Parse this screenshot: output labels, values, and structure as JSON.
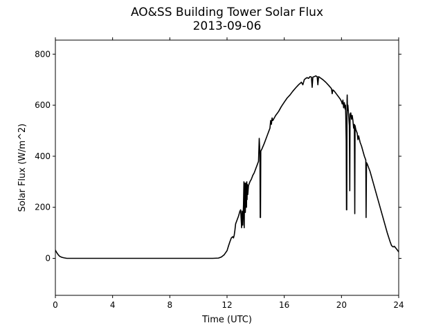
{
  "chart_data": {
    "type": "line",
    "title": "AO&SS Building Tower Solar Flux",
    "subtitle": "2013-09-06",
    "xlabel": "Time (UTC)",
    "ylabel": "Solar Flux (W/m^2)",
    "xlim": [
      0,
      24
    ],
    "ylim": [
      -145,
      855
    ],
    "xticks": [
      0,
      4,
      8,
      12,
      16,
      20,
      24
    ],
    "yticks": [
      0,
      200,
      400,
      600,
      800
    ],
    "grid": false,
    "series": [
      {
        "color": "#000000",
        "points": [
          [
            0,
            32
          ],
          [
            0.1,
            22
          ],
          [
            0.2,
            14
          ],
          [
            0.3,
            8
          ],
          [
            0.45,
            4
          ],
          [
            0.6,
            2
          ],
          [
            0.8,
            0
          ],
          [
            1.0,
            0
          ],
          [
            4,
            0
          ],
          [
            8,
            0
          ],
          [
            11,
            0
          ],
          [
            11.4,
            1
          ],
          [
            11.6,
            5
          ],
          [
            11.8,
            14
          ],
          [
            12.0,
            30
          ],
          [
            12.1,
            48
          ],
          [
            12.2,
            65
          ],
          [
            12.3,
            80
          ],
          [
            12.4,
            85
          ],
          [
            12.45,
            80
          ],
          [
            12.5,
            90
          ],
          [
            12.55,
            110
          ],
          [
            12.6,
            135
          ],
          [
            12.7,
            150
          ],
          [
            12.8,
            165
          ],
          [
            12.85,
            175
          ],
          [
            12.9,
            185
          ],
          [
            12.95,
            190
          ],
          [
            13.0,
            140
          ],
          [
            13.02,
            120
          ],
          [
            13.05,
            185
          ],
          [
            13.08,
            160
          ],
          [
            13.1,
            130
          ],
          [
            13.13,
            175
          ],
          [
            13.15,
            210
          ],
          [
            13.18,
            300
          ],
          [
            13.2,
            120
          ],
          [
            13.22,
            230
          ],
          [
            13.25,
            295
          ],
          [
            13.28,
            180
          ],
          [
            13.3,
            240
          ],
          [
            13.33,
            295
          ],
          [
            13.36,
            200
          ],
          [
            13.38,
            300
          ],
          [
            13.4,
            230
          ],
          [
            13.42,
            290
          ],
          [
            13.45,
            250
          ],
          [
            13.5,
            285
          ],
          [
            13.6,
            300
          ],
          [
            13.7,
            310
          ],
          [
            13.8,
            325
          ],
          [
            13.9,
            335
          ],
          [
            14.0,
            350
          ],
          [
            14.1,
            365
          ],
          [
            14.2,
            380
          ],
          [
            14.25,
            470
          ],
          [
            14.3,
            410
          ],
          [
            14.32,
            160
          ],
          [
            14.34,
            160
          ],
          [
            14.36,
            420
          ],
          [
            14.45,
            430
          ],
          [
            14.6,
            450
          ],
          [
            14.8,
            480
          ],
          [
            15.0,
            510
          ],
          [
            15.05,
            540
          ],
          [
            15.1,
            525
          ],
          [
            15.15,
            550
          ],
          [
            15.2,
            540
          ],
          [
            15.4,
            560
          ],
          [
            15.6,
            575
          ],
          [
            15.8,
            595
          ],
          [
            16.0,
            612
          ],
          [
            16.2,
            628
          ],
          [
            16.4,
            640
          ],
          [
            16.6,
            655
          ],
          [
            16.8,
            668
          ],
          [
            17.0,
            680
          ],
          [
            17.2,
            690
          ],
          [
            17.3,
            680
          ],
          [
            17.4,
            700
          ],
          [
            17.5,
            705
          ],
          [
            17.6,
            708
          ],
          [
            17.7,
            705
          ],
          [
            17.8,
            712
          ],
          [
            17.9,
            710
          ],
          [
            17.95,
            670
          ],
          [
            18.0,
            710
          ],
          [
            18.1,
            712
          ],
          [
            18.2,
            715
          ],
          [
            18.3,
            712
          ],
          [
            18.35,
            680
          ],
          [
            18.4,
            712
          ],
          [
            18.5,
            708
          ],
          [
            18.7,
            700
          ],
          [
            18.9,
            690
          ],
          [
            19.1,
            678
          ],
          [
            19.3,
            665
          ],
          [
            19.35,
            645
          ],
          [
            19.4,
            660
          ],
          [
            19.5,
            655
          ],
          [
            19.7,
            640
          ],
          [
            19.9,
            625
          ],
          [
            20.0,
            615
          ],
          [
            20.05,
            605
          ],
          [
            20.1,
            620
          ],
          [
            20.15,
            590
          ],
          [
            20.2,
            610
          ],
          [
            20.25,
            585
          ],
          [
            20.28,
            600
          ],
          [
            20.3,
            560
          ],
          [
            20.33,
            460
          ],
          [
            20.35,
            190
          ],
          [
            20.37,
            190
          ],
          [
            20.39,
            620
          ],
          [
            20.4,
            640
          ],
          [
            20.42,
            580
          ],
          [
            20.45,
            600
          ],
          [
            20.5,
            560
          ],
          [
            20.55,
            520
          ],
          [
            20.58,
            265
          ],
          [
            20.6,
            565
          ],
          [
            20.65,
            570
          ],
          [
            20.7,
            545
          ],
          [
            20.75,
            560
          ],
          [
            20.8,
            540
          ],
          [
            20.85,
            510
          ],
          [
            20.9,
            525
          ],
          [
            20.93,
            175
          ],
          [
            20.95,
            520
          ],
          [
            21.0,
            505
          ],
          [
            21.1,
            490
          ],
          [
            21.15,
            465
          ],
          [
            21.2,
            480
          ],
          [
            21.3,
            455
          ],
          [
            21.4,
            440
          ],
          [
            21.5,
            420
          ],
          [
            21.6,
            400
          ],
          [
            21.7,
            385
          ],
          [
            21.72,
            160
          ],
          [
            21.75,
            375
          ],
          [
            21.8,
            370
          ],
          [
            22.0,
            340
          ],
          [
            22.2,
            300
          ],
          [
            22.4,
            260
          ],
          [
            22.6,
            220
          ],
          [
            22.8,
            180
          ],
          [
            23.0,
            140
          ],
          [
            23.2,
            100
          ],
          [
            23.4,
            65
          ],
          [
            23.5,
            50
          ],
          [
            23.6,
            45
          ],
          [
            23.7,
            47
          ],
          [
            23.8,
            40
          ],
          [
            23.9,
            33
          ],
          [
            24.0,
            25
          ]
        ]
      }
    ]
  }
}
